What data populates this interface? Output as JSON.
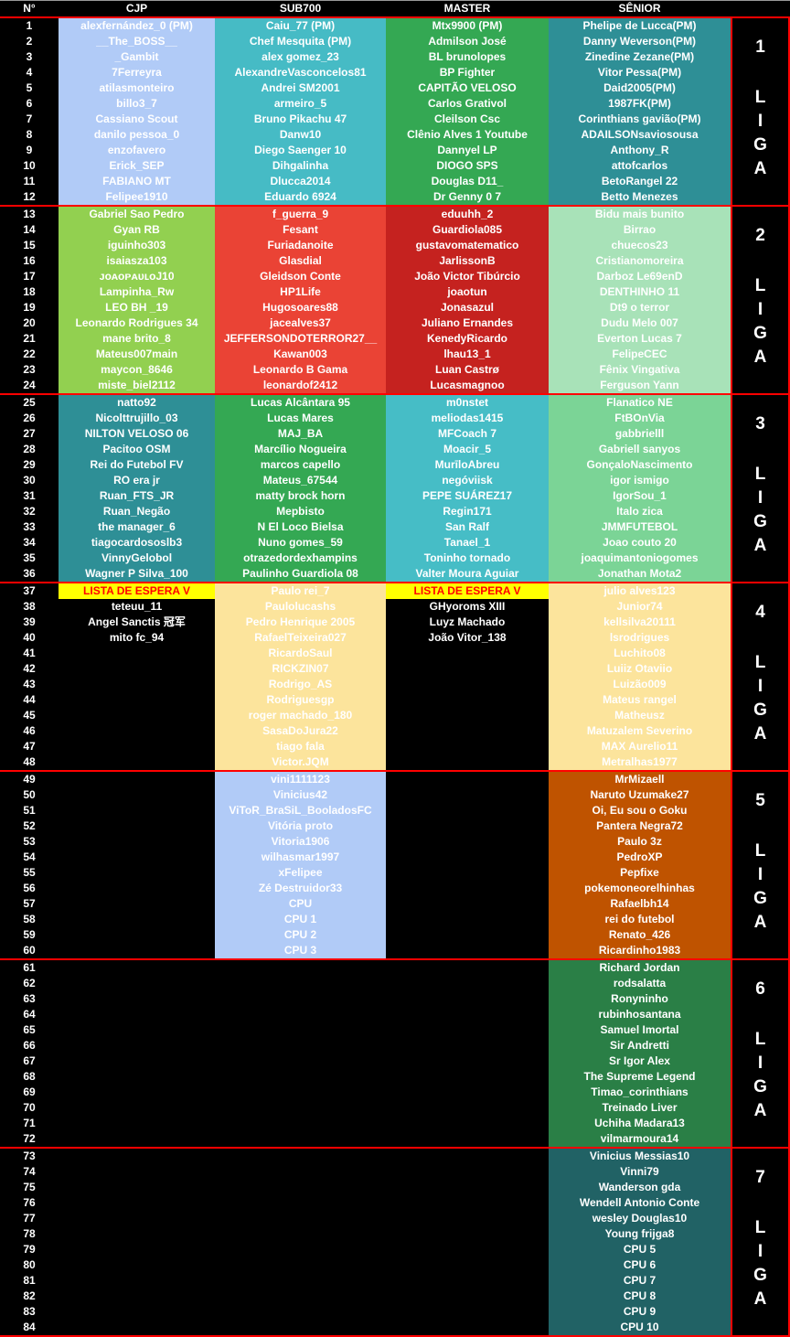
{
  "header": {
    "number": "N°",
    "columns": [
      "CJP",
      "SUB700",
      "MASTER",
      "SÊNIOR"
    ]
  },
  "leagues": [
    {
      "label": "1",
      "word": [
        "L",
        "I",
        "G",
        "A"
      ],
      "numbers": [
        "1",
        "2",
        "3",
        "4",
        "5",
        "6",
        "7",
        "8",
        "9",
        "10",
        "11",
        "12"
      ],
      "columns": [
        {
          "bg": "#b1cbf7",
          "cells": [
            "alexfernández_0 (PM)",
            "__The_BOSS__",
            "_Gambit",
            "7Ferreyra",
            "atilasmonteiro",
            "billo3_7",
            "Cassiano Scout",
            "danilo pessoa_0",
            "enzofavero",
            "Erick_SEP",
            "FABIANO MT",
            "Felipee1910"
          ]
        },
        {
          "bg": "#46bbc5",
          "cells": [
            "Caiu_77 (PM)",
            "Chef Mesquita (PM)",
            "alex gomez_23",
            "AlexandreVasconcelos81",
            "Andrei SM2001",
            "armeiro_5",
            "Bruno Pikachu 47",
            "Danw10",
            "Diego Saenger 10",
            "Dihgalinha",
            "Dlucca2014",
            "Eduardo 6924"
          ]
        },
        {
          "bg": "#34a853",
          "cells": [
            "Mtx9900 (PM)",
            "Admilson José",
            "BL brunolopes",
            "BP Fighter",
            "CAPITÃO VELOSO",
            "Carlos Grativol",
            "Cleilson Csc",
            "Clênio Alves 1 Youtube",
            "Dannyel LP",
            "DIOGO SPS",
            "Douglas D11_",
            "Dr Genny 0 7"
          ]
        },
        {
          "bg": "#2e8f96",
          "cells": [
            "Phelipe de Lucca(PM)",
            "Danny Weverson(PM)",
            "Zinedine Zezane(PM)",
            "Vitor Pessa(PM)",
            "Daid2005(PM)",
            "1987FK(PM)",
            "Corinthians gavião(PM)",
            "ADAILSONsaviosousa",
            "Anthony_R",
            "attofcarlos",
            "BetoRangel 22",
            "Betto Menezes"
          ]
        }
      ]
    },
    {
      "label": "2",
      "word": [
        "L",
        "I",
        "G",
        "A"
      ],
      "numbers": [
        "13",
        "14",
        "15",
        "16",
        "17",
        "18",
        "19",
        "20",
        "21",
        "22",
        "23",
        "24"
      ],
      "columns": [
        {
          "bg": "#92d050",
          "cells": [
            "Gabriel Sao Pedro",
            "Gyan RB",
            "iguinho303",
            "isaiasza103",
            "ᴊᴏᴀᴏᴘᴀᴜʟᴏJ10",
            "Lampinha_Rw",
            "LEO BH _19",
            "Leonardo Rodrigues 34",
            "mane brito_8",
            "Mateus007main",
            "maycon_8646",
            "miste_biel2112"
          ]
        },
        {
          "bg": "#ea4335",
          "cells": [
            "f_guerra_9",
            "Fesant",
            "Furiadanoite",
            "Glasdial",
            "Gleidson Conte",
            "HP1Life",
            "Hugosoares88",
            "jacealves37",
            "JEFFERSONDOTERROR27__",
            "Kawan003",
            "Leonardo B Gama",
            "leonardof2412"
          ]
        },
        {
          "bg": "#c5221f",
          "cells": [
            "eduuhh_2",
            "Guardiola085",
            "gustavomatematico",
            "JarlissonB",
            "João Victor Tibúrcio",
            "joaotun",
            "Jonasazul",
            "Juliano Ernandes",
            "KenedyRicardo",
            "lhau13_1",
            "Luan Castrø",
            "Lucasmagnoo"
          ]
        },
        {
          "bg": "#a8e2b8",
          "cells": [
            "Bidu mais bunito",
            "Birrao",
            "chuecos23",
            "Cristianomoreira",
            "Darboz Le69enD",
            "DENTHINHO 11",
            "Dt9 o terror",
            "Dudu Melo 007",
            "Everton Lucas 7",
            "FelipeCEC",
            "Fênix Vingativa",
            "Ferguson Yann"
          ]
        }
      ]
    },
    {
      "label": "3",
      "word": [
        "L",
        "I",
        "G",
        "A"
      ],
      "numbers": [
        "25",
        "26",
        "27",
        "28",
        "29",
        "30",
        "31",
        "32",
        "33",
        "34",
        "35",
        "36"
      ],
      "columns": [
        {
          "bg": "#2e8f96",
          "cells": [
            "natto92",
            "Nicolttrujillo_03",
            "NILTON VELOSO 06",
            "Pacitoo OSM",
            "Rei do Futebol FV",
            "RO era jr",
            "Ruan_FTS_JR",
            "Ruan_Negão",
            "the manager_6",
            "tiagocardososlb3",
            "VinnyGelobol",
            "Wagner P Silva_100"
          ]
        },
        {
          "bg": "#34a853",
          "cells": [
            "Lucas Alcântara 95",
            "Lucas Mares",
            "MAJ_BA",
            "Marcílio Nogueira",
            "marcos capello",
            "Mateus_67544",
            "matty brock horn",
            "Mepbisto",
            "N El Loco Bielsa",
            "Nuno gomes_59",
            "otrazedordexhampins",
            "Paulinho Guardiola 08"
          ]
        },
        {
          "bg": "#46bdc6",
          "cells": [
            "m0nstet",
            "meliodas1415",
            "MFCoach 7",
            "Moacir_5",
            "MurīloAbreu",
            "negóviisk",
            "PEPE SUÁREZ17",
            "Regin171",
            "San Ralf",
            "Tanael_1",
            "Toninho tornado",
            "Valter Moura Aguiar"
          ]
        },
        {
          "bg": "#7bd496",
          "cells": [
            "Flanatico NE",
            "FtBOnVia",
            "gabbrielll",
            "Gabriell sanyos",
            "GonçaloNascimento",
            "igor ismigo",
            "IgorSou_1",
            "Italo zica",
            "JMMFUTEBOL",
            "Joao couto 20",
            "joaquimantoniogomes",
            "Jonathan Mota2"
          ]
        }
      ]
    },
    {
      "label": "4",
      "word": [
        "L",
        "I",
        "G",
        "A"
      ],
      "numbers": [
        "37",
        "38",
        "39",
        "40",
        "41",
        "42",
        "43",
        "44",
        "45",
        "46",
        "47",
        "48"
      ],
      "columns": [
        {
          "bg": "#000000",
          "waitlist": {
            "bg": "#ffff00",
            "color": "#ff0000"
          },
          "cells": [
            "LISTA DE ESPERA V",
            "teteuu_11",
            "Angel Sanctis 冠军",
            "mito fc_94",
            "",
            "",
            "",
            "",
            "",
            "",
            "",
            ""
          ]
        },
        {
          "bg": "#fce49c",
          "cells": [
            "Paulo rei_7",
            "Paulolucashs",
            "Pedro Henrique 2005",
            "RafaelTeixeira027",
            "RicardoSaul",
            "RICKZIN07",
            "Rodrigo_AS",
            "Rodriguesgp",
            "roger machado_180",
            "SasaDoJura22",
            "tiago fala",
            "Victor.JQM"
          ]
        },
        {
          "bg": "#000000",
          "waitlist": {
            "bg": "#ffff00",
            "color": "#ff0000"
          },
          "cells": [
            "LISTA DE ESPERA V",
            "GHyoroms XIII",
            "Luyz Machado",
            "João Vitor_138",
            "",
            "",
            "",
            "",
            "",
            "",
            "",
            ""
          ]
        },
        {
          "bg": "#fce49c",
          "cells": [
            "julio alves123",
            "Junior74",
            "kellsilva20111",
            "lsrodrigues",
            "Luchito08",
            "Luiiz Otaviio",
            "Luizão009",
            "Mateus rangel",
            "Matheusz",
            "Matuzalem Severino",
            "MAX Aurelio11",
            "Metralhas1977"
          ]
        }
      ]
    },
    {
      "label": "5",
      "word": [
        "L",
        "I",
        "G",
        "A"
      ],
      "numbers": [
        "49",
        "50",
        "51",
        "52",
        "53",
        "54",
        "55",
        "56",
        "57",
        "58",
        "59",
        "60"
      ],
      "columns": [
        {
          "bg": "#000000",
          "cells": [
            "",
            "",
            "",
            "",
            "",
            "",
            "",
            "",
            "",
            "",
            "",
            ""
          ]
        },
        {
          "bg": "#b1cbf7",
          "cells": [
            "vini1111123",
            "Vinicius42",
            "ViToR_BraSiL_BooladosFC",
            "Vitória proto",
            "Vitoria1906",
            "wilhasmar1997",
            "xFelipee",
            "Zé Destruidor33",
            "CPU",
            "CPU 1",
            "CPU 2",
            "CPU 3"
          ]
        },
        {
          "bg": "#000000",
          "cells": [
            "",
            "",
            "",
            "",
            "",
            "",
            "",
            "",
            "",
            "",
            "",
            ""
          ]
        },
        {
          "bg": "#bf5300",
          "cells": [
            "MrMizaell",
            "Naruto Uzumake27",
            "Oi, Eu sou o Goku",
            "Pantera Negra72",
            "Paulo 3z",
            "PedroXP",
            "Pepfixe",
            "pokemoneorelhinhas",
            "Rafaelbh14",
            "rei do futebol",
            "Renato_426",
            "Ricardinho1983"
          ]
        }
      ]
    },
    {
      "label": "6",
      "word": [
        "L",
        "I",
        "G",
        "A"
      ],
      "numbers": [
        "61",
        "62",
        "63",
        "64",
        "65",
        "66",
        "67",
        "68",
        "69",
        "70",
        "71",
        "72"
      ],
      "columns": [
        {
          "bg": "#000000",
          "cells": [
            "",
            "",
            "",
            "",
            "",
            "",
            "",
            "",
            "",
            "",
            "",
            ""
          ]
        },
        {
          "bg": "#000000",
          "cells": [
            "",
            "",
            "",
            "",
            "",
            "",
            "",
            "",
            "",
            "",
            "",
            ""
          ]
        },
        {
          "bg": "#000000",
          "cells": [
            "",
            "",
            "",
            "",
            "",
            "",
            "",
            "",
            "",
            "",
            "",
            ""
          ]
        },
        {
          "bg": "#2a7f46",
          "cells": [
            "Richard Jordan",
            "rodsalatta",
            "Ronyninho",
            "rubinhosantana",
            "Samuel Imortal",
            "Sir Andretti",
            "Sr Igor Alex",
            "The Supreme Legend",
            "Timao_corinthians",
            "Treinado Liver",
            "Uchiha Madara13",
            "vilmarmoura14"
          ]
        }
      ]
    },
    {
      "label": "7",
      "word": [
        "L",
        "I",
        "G",
        "A"
      ],
      "numbers": [
        "73",
        "74",
        "75",
        "76",
        "77",
        "78",
        "79",
        "80",
        "81",
        "82",
        "83",
        "84"
      ],
      "columns": [
        {
          "bg": "#000000",
          "cells": [
            "",
            "",
            "",
            "",
            "",
            "",
            "",
            "",
            "",
            "",
            "",
            ""
          ]
        },
        {
          "bg": "#000000",
          "cells": [
            "",
            "",
            "",
            "",
            "",
            "",
            "",
            "",
            "",
            "",
            "",
            ""
          ]
        },
        {
          "bg": "#000000",
          "cells": [
            "",
            "",
            "",
            "",
            "",
            "",
            "",
            "",
            "",
            "",
            "",
            ""
          ]
        },
        {
          "bg": "#216265",
          "cells": [
            "Vinicius Messias10",
            "Vinni79",
            "Wanderson gda",
            "Wendell Antonio Conte",
            "wesley Douglas10",
            "Young frijga8",
            "CPU 5",
            "CPU 6",
            "CPU 7",
            "CPU 8",
            "CPU 9",
            "CPU 10"
          ]
        }
      ]
    }
  ]
}
